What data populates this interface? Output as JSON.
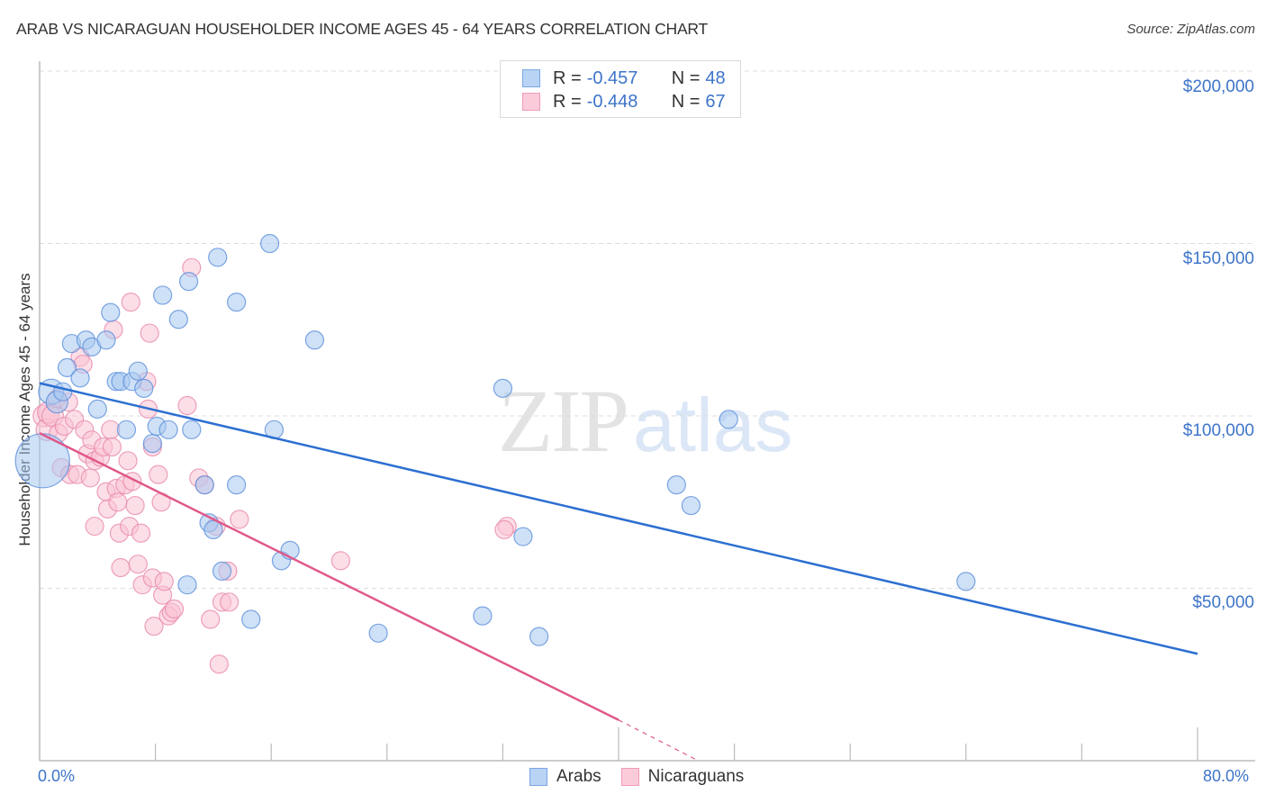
{
  "header": {
    "title": "ARAB VS NICARAGUAN HOUSEHOLDER INCOME AGES 45 - 64 YEARS CORRELATION CHART",
    "source": "Source: ZipAtlas.com"
  },
  "legend_top": {
    "rows": [
      {
        "r_label": "R = ",
        "r_value": "-0.457",
        "n_label": "N = ",
        "n_value": "48",
        "color": "#a8c8f0",
        "border": "#6f9fe0"
      },
      {
        "r_label": "R = ",
        "r_value": "-0.448",
        "n_label": "N = ",
        "n_value": "67",
        "color": "#f9c2d3",
        "border": "#ec8fae"
      }
    ]
  },
  "legend_bottom": {
    "items": [
      {
        "label": "Arabs",
        "color": "#a8c8f0",
        "border": "#6f9fe0"
      },
      {
        "label": "Nicaraguans",
        "color": "#f9c2d3",
        "border": "#ec8fae"
      }
    ]
  },
  "axes": {
    "ylabel": "Householder Income Ages 45 - 64 years",
    "y_ticks": [
      "$200,000",
      "$150,000",
      "$100,000",
      "$50,000"
    ],
    "x_ticks": [
      "0.0%",
      "80.0%"
    ]
  },
  "watermark": {
    "zip": "ZIP",
    "atlas": "atlas"
  },
  "colors": {
    "arabs_fill": "#a8c8f0",
    "arabs_stroke": "#5b8fdb",
    "arabs_line": "#2c6fd1",
    "nic_fill": "#f9c2d3",
    "nic_stroke": "#e98aab",
    "nic_line": "#e0588a",
    "tick_text": "#3d74c9",
    "grid": "#dddddd"
  },
  "chart_data": {
    "type": "scatter",
    "title": "ARAB VS NICARAGUAN HOUSEHOLDER INCOME AGES 45 - 64 YEARS CORRELATION CHART",
    "xlabel": "",
    "ylabel": "Householder Income Ages 45 - 64 years",
    "xlim": [
      0,
      80
    ],
    "ylim": [
      0,
      220000
    ],
    "x_unit": "%",
    "y_ticks": [
      50000,
      100000,
      150000,
      200000
    ],
    "grid": true,
    "legend_position": "top-center (stats) and bottom-center (series)",
    "series": [
      {
        "name": "Arabs",
        "R": -0.457,
        "N": 48,
        "trend": {
          "x0": 0,
          "y0": 109500,
          "x1": 80,
          "y1": 31000
        },
        "points": [
          [
            0.2,
            87000,
            30
          ],
          [
            0.8,
            107000,
            14
          ],
          [
            1.2,
            104000,
            12
          ],
          [
            1.6,
            107000,
            10
          ],
          [
            1.9,
            114000,
            10
          ],
          [
            2.2,
            121000,
            10
          ],
          [
            2.8,
            111000,
            10
          ],
          [
            3.2,
            122000,
            10
          ],
          [
            3.6,
            120000,
            10
          ],
          [
            4.0,
            102000,
            10
          ],
          [
            4.6,
            122000,
            10
          ],
          [
            4.9,
            130000,
            10
          ],
          [
            5.3,
            110000,
            10
          ],
          [
            5.6,
            110000,
            10
          ],
          [
            6.0,
            96000,
            10
          ],
          [
            6.4,
            110000,
            10
          ],
          [
            6.8,
            113000,
            10
          ],
          [
            7.2,
            108000,
            10
          ],
          [
            7.8,
            92000,
            10
          ],
          [
            8.1,
            97000,
            10
          ],
          [
            8.5,
            135000,
            10
          ],
          [
            8.9,
            96000,
            10
          ],
          [
            9.6,
            128000,
            10
          ],
          [
            10.2,
            51000,
            10
          ],
          [
            10.3,
            139000,
            10
          ],
          [
            10.5,
            96000,
            10
          ],
          [
            11.4,
            80000,
            10
          ],
          [
            11.7,
            69000,
            10
          ],
          [
            12.0,
            67000,
            10
          ],
          [
            12.3,
            146000,
            10
          ],
          [
            12.6,
            55000,
            10
          ],
          [
            13.6,
            133000,
            10
          ],
          [
            13.6,
            80000,
            10
          ],
          [
            14.6,
            41000,
            10
          ],
          [
            15.9,
            150000,
            10
          ],
          [
            16.2,
            96000,
            10
          ],
          [
            16.7,
            58000,
            10
          ],
          [
            17.3,
            61000,
            10
          ],
          [
            19.0,
            122000,
            10
          ],
          [
            23.4,
            37000,
            10
          ],
          [
            30.6,
            42000,
            10
          ],
          [
            32.0,
            108000,
            10
          ],
          [
            33.4,
            65000,
            10
          ],
          [
            34.5,
            36000,
            10
          ],
          [
            44.0,
            80000,
            10
          ],
          [
            45.0,
            74000,
            10
          ],
          [
            47.6,
            99000,
            10
          ],
          [
            64.0,
            52000,
            10
          ]
        ]
      },
      {
        "name": "Nicaraguans",
        "R": -0.448,
        "N": 67,
        "trend": {
          "x0": 0,
          "y0": 95000,
          "x1": 40,
          "y1": 11800,
          "dashed_to": {
            "x": 45.5,
            "y": 0
          }
        },
        "points": [
          [
            0.3,
            100000,
            12
          ],
          [
            0.5,
            96000,
            12
          ],
          [
            0.6,
            101000,
            12
          ],
          [
            0.9,
            100000,
            12
          ],
          [
            1.2,
            105000,
            10
          ],
          [
            1.3,
            95000,
            10
          ],
          [
            1.5,
            85000,
            10
          ],
          [
            1.7,
            97000,
            10
          ],
          [
            2.0,
            104000,
            10
          ],
          [
            2.1,
            83000,
            10
          ],
          [
            2.4,
            99000,
            10
          ],
          [
            2.6,
            83000,
            10
          ],
          [
            2.8,
            117000,
            10
          ],
          [
            3.0,
            115000,
            10
          ],
          [
            3.1,
            96000,
            10
          ],
          [
            3.3,
            89000,
            10
          ],
          [
            3.5,
            82000,
            10
          ],
          [
            3.6,
            93000,
            10
          ],
          [
            3.8,
            87000,
            10
          ],
          [
            3.8,
            68000,
            10
          ],
          [
            4.2,
            88000,
            10
          ],
          [
            4.4,
            91000,
            10
          ],
          [
            4.6,
            78000,
            10
          ],
          [
            4.7,
            73000,
            10
          ],
          [
            4.9,
            96000,
            10
          ],
          [
            5.0,
            91000,
            10
          ],
          [
            5.1,
            125000,
            10
          ],
          [
            5.3,
            79000,
            10
          ],
          [
            5.4,
            75000,
            10
          ],
          [
            5.5,
            66000,
            10
          ],
          [
            5.6,
            56000,
            10
          ],
          [
            5.9,
            80000,
            10
          ],
          [
            6.1,
            87000,
            10
          ],
          [
            6.2,
            68000,
            10
          ],
          [
            6.3,
            133000,
            10
          ],
          [
            6.4,
            81000,
            10
          ],
          [
            6.6,
            74000,
            10
          ],
          [
            6.8,
            57000,
            10
          ],
          [
            7.0,
            66000,
            10
          ],
          [
            7.1,
            51000,
            10
          ],
          [
            7.4,
            110000,
            10
          ],
          [
            7.5,
            102000,
            10
          ],
          [
            7.6,
            124000,
            10
          ],
          [
            7.8,
            53000,
            10
          ],
          [
            7.8,
            91000,
            10
          ],
          [
            7.9,
            39000,
            10
          ],
          [
            8.2,
            83000,
            10
          ],
          [
            8.4,
            75000,
            10
          ],
          [
            8.5,
            48000,
            10
          ],
          [
            8.6,
            52000,
            10
          ],
          [
            8.9,
            42000,
            10
          ],
          [
            9.1,
            43000,
            10
          ],
          [
            9.3,
            44000,
            10
          ],
          [
            10.2,
            103000,
            10
          ],
          [
            10.5,
            143000,
            10
          ],
          [
            11.0,
            82000,
            10
          ],
          [
            11.4,
            80000,
            10
          ],
          [
            11.8,
            41000,
            10
          ],
          [
            12.2,
            68000,
            10
          ],
          [
            12.4,
            28000,
            10
          ],
          [
            12.6,
            46000,
            10
          ],
          [
            13.0,
            55000,
            10
          ],
          [
            13.1,
            46000,
            10
          ],
          [
            13.8,
            70000,
            10
          ],
          [
            20.8,
            58000,
            10
          ],
          [
            32.3,
            68000,
            10
          ],
          [
            32.1,
            67000,
            10
          ]
        ]
      }
    ]
  }
}
